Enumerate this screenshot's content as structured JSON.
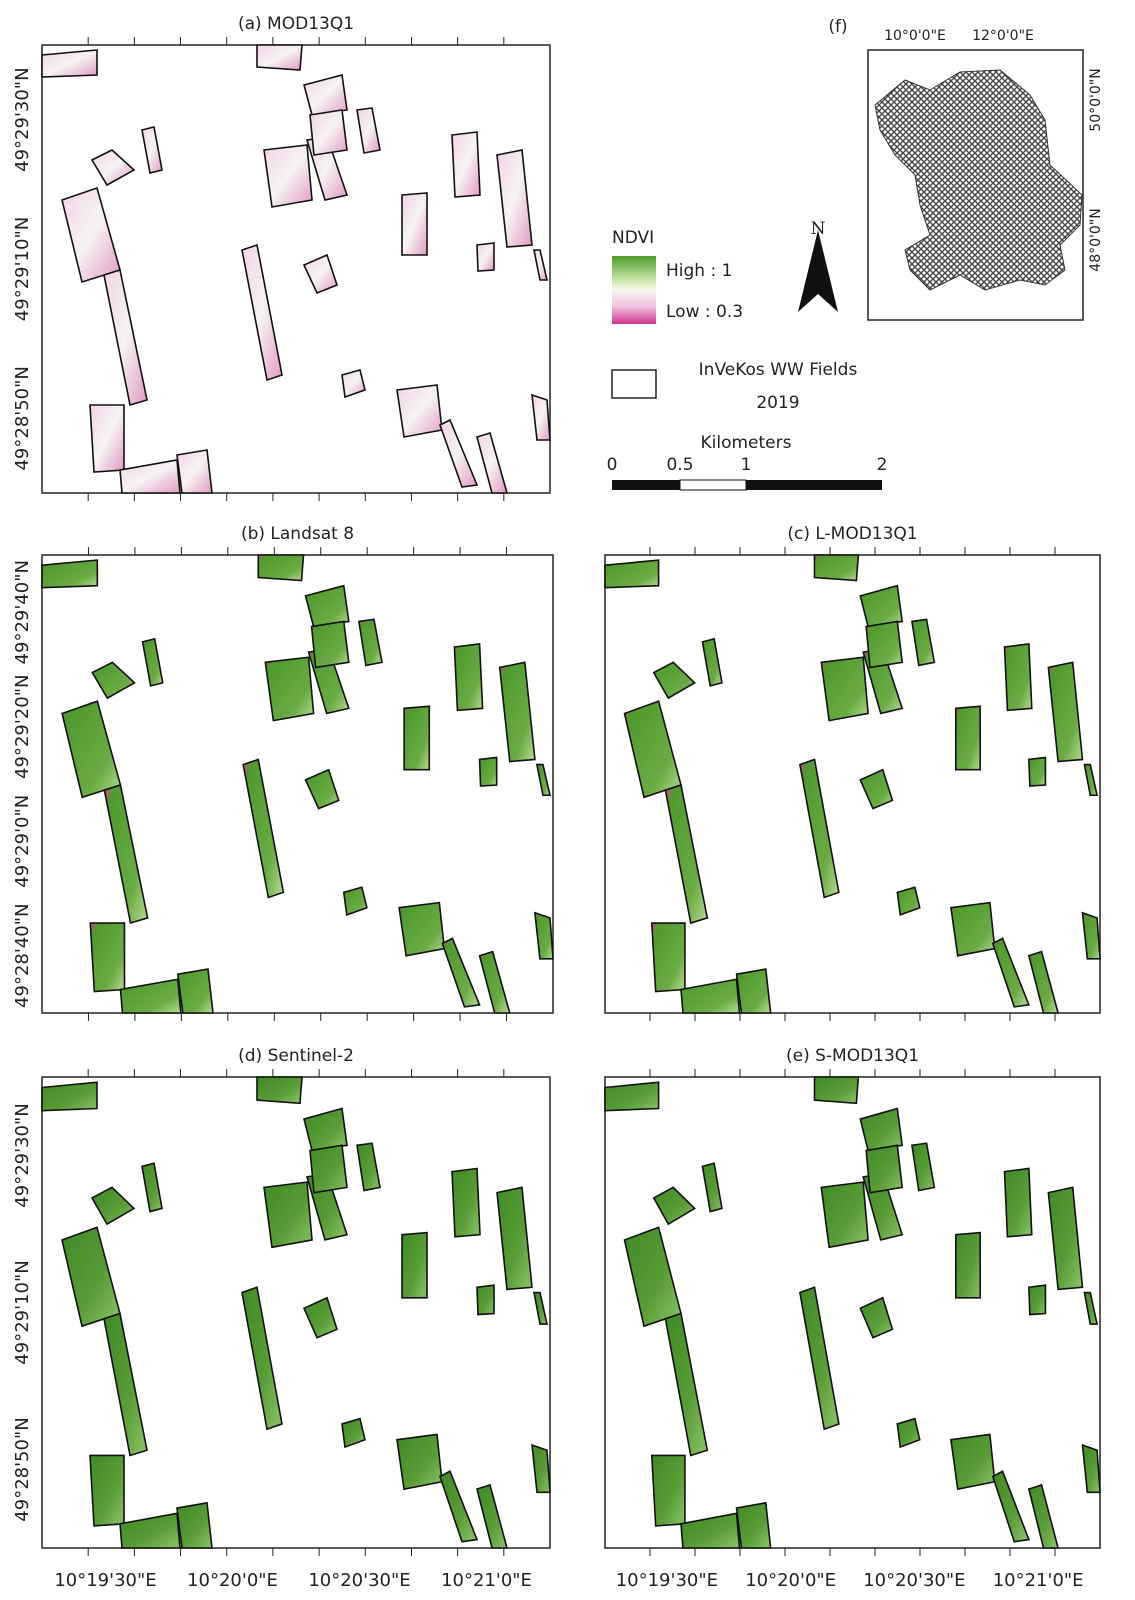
{
  "panels": [
    {
      "title": "(a)  MOD13Q1",
      "lat_labels": [
        "49°29'30\"N",
        "49°29'10\"N",
        "49°28'50\"N"
      ],
      "lon_labels": []
    },
    {
      "title": "(b)  Landsat 8",
      "lat_labels": [
        "49°29'40\"N",
        "49°29'20\"N",
        "49°29'0\"N",
        "49°28'40\"N"
      ],
      "lon_labels": []
    },
    {
      "title": "(c)  L-MOD13Q1",
      "lat_labels": [],
      "lon_labels": []
    },
    {
      "title": "(d)  Sentinel-2",
      "lat_labels": [
        "49°29'30\"N",
        "49°29'10\"N",
        "49°28'50\"N"
      ],
      "lon_labels": [
        "10°19'30\"E",
        "10°20'0\"E",
        "10°20'30\"E",
        "10°21'0\"E"
      ]
    },
    {
      "title": "(e)  S-MOD13Q1",
      "lat_labels": [],
      "lon_labels": [
        "10°19'30\"E",
        "10°20'0\"E",
        "10°20'30\"E",
        "10°21'0\"E"
      ]
    }
  ],
  "inset": {
    "title": "(f)",
    "lon_labels": [
      "10°0'0\"E",
      "12°0'0\"E"
    ],
    "lat_labels": [
      "50°0'0\"N",
      "48°0'0\"N"
    ]
  },
  "legend": {
    "title": "NDVI",
    "high": "High : 1",
    "low": "Low : 0.3",
    "fields_line1": "InVeKos WW Fields",
    "fields_line2": "2019"
  },
  "scalebar": {
    "unit": "Kilometers",
    "labels": [
      "0",
      "0.5",
      "1",
      "2"
    ]
  },
  "north": "N"
}
